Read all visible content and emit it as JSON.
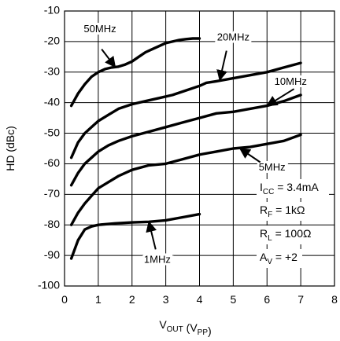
{
  "chart_data": {
    "type": "line",
    "title": "",
    "xlabel": {
      "main": "V",
      "sub": "OUT",
      "paren_main": " (V",
      "paren_sub": "PP",
      "close": ")"
    },
    "ylabel": "HD (dBc)",
    "xlim": [
      0,
      8
    ],
    "ylim": [
      -100,
      -10
    ],
    "xticks": [
      0,
      1,
      2,
      3,
      4,
      5,
      6,
      7,
      8
    ],
    "yticks": [
      -100,
      -90,
      -80,
      -70,
      -60,
      -50,
      -40,
      -30,
      -20,
      -10
    ],
    "xtick_labels": [
      "0",
      "1",
      "2",
      "3",
      "4",
      "5",
      "6",
      "7",
      "8"
    ],
    "ytick_labels": [
      "-100",
      "-90",
      "-80",
      "-70",
      "-60",
      "-50",
      "-40",
      "-30",
      "-20",
      "-10"
    ],
    "grid": true,
    "series_color": "#000000",
    "series": [
      {
        "name": "50MHz",
        "x": [
          0.2,
          0.4,
          0.6,
          0.8,
          1.0,
          1.2,
          1.4,
          1.6,
          1.8,
          2.0,
          2.2,
          2.4,
          2.6,
          2.8,
          3.0,
          3.2,
          3.4,
          3.6,
          3.8,
          4.0
        ],
        "y": [
          -41,
          -37,
          -34,
          -31.5,
          -30,
          -29,
          -28.5,
          -28.2,
          -27.5,
          -26.5,
          -25,
          -23.5,
          -22.5,
          -21.5,
          -20.5,
          -20,
          -19.5,
          -19.2,
          -19,
          -19
        ]
      },
      {
        "name": "20MHz",
        "x": [
          0.2,
          0.4,
          0.6,
          0.8,
          1.0,
          1.3,
          1.6,
          2.0,
          2.4,
          2.8,
          3.2,
          3.6,
          4.0,
          4.2,
          4.5,
          5.0,
          5.5,
          6.0,
          6.5,
          7.0
        ],
        "y": [
          -58,
          -53,
          -50,
          -48,
          -46,
          -44,
          -42,
          -40.5,
          -39.5,
          -38.5,
          -37.5,
          -36,
          -34.5,
          -33.5,
          -33,
          -32,
          -31,
          -30,
          -28.5,
          -27
        ]
      },
      {
        "name": "10MHz",
        "x": [
          0.2,
          0.4,
          0.6,
          0.8,
          1.0,
          1.3,
          1.6,
          2.0,
          2.5,
          3.0,
          3.5,
          4.0,
          4.5,
          5.0,
          5.5,
          6.0,
          6.5,
          7.0
        ],
        "y": [
          -67,
          -63,
          -60,
          -58,
          -56,
          -54,
          -52.5,
          -51,
          -49.5,
          -48,
          -46.5,
          -45,
          -43.5,
          -43,
          -42,
          -41,
          -39.5,
          -37.5
        ]
      },
      {
        "name": "5MHz",
        "x": [
          0.2,
          0.4,
          0.6,
          0.8,
          1.0,
          1.3,
          1.6,
          2.0,
          2.5,
          3.0,
          3.5,
          4.0,
          4.5,
          5.0,
          5.5,
          6.0,
          6.5,
          7.0
        ],
        "y": [
          -80,
          -76,
          -73,
          -70.5,
          -68,
          -66,
          -64,
          -62,
          -60.5,
          -60,
          -58.5,
          -57,
          -56,
          -55,
          -54.5,
          -53.5,
          -52.5,
          -50.5
        ]
      },
      {
        "name": "1MHz",
        "x": [
          0.2,
          0.4,
          0.6,
          0.8,
          1.0,
          1.5,
          2.0,
          2.5,
          3.0,
          3.5,
          4.0
        ],
        "y": [
          -91,
          -85,
          -81.5,
          -80.5,
          -80,
          -79.5,
          -79.2,
          -79,
          -78.5,
          -77.5,
          -76.5
        ]
      }
    ],
    "annotations": [
      {
        "series": "50MHz",
        "text": "50MHz",
        "label_x": 1.05,
        "label_y": -16,
        "arrow_from": [
          1.1,
          -22.5
        ],
        "arrow_to": [
          1.5,
          -28.3
        ]
      },
      {
        "series": "20MHz",
        "text": "20MHz",
        "label_x": 5.0,
        "label_y": -18.8,
        "arrow_from": [
          4.8,
          -23
        ],
        "arrow_to": [
          4.6,
          -32.6
        ]
      },
      {
        "series": "10MHz",
        "text": "10MHz",
        "label_x": 6.7,
        "label_y": -33.3,
        "arrow_from": [
          6.8,
          -35.5
        ],
        "arrow_to": [
          6.0,
          -41
        ]
      },
      {
        "series": "5MHz",
        "text": "5MHz",
        "label_x": 6.15,
        "label_y": -61.3,
        "arrow_from": [
          5.8,
          -59.5
        ],
        "arrow_to": [
          5.2,
          -55
        ]
      },
      {
        "series": "1MHz",
        "text": "1MHz",
        "label_x": 2.75,
        "label_y": -91.5,
        "arrow_from": [
          2.7,
          -88
        ],
        "arrow_to": [
          2.5,
          -79
        ]
      }
    ],
    "conditions": [
      {
        "main": "I",
        "sub": "CC",
        "rest": " = 3.4mA"
      },
      {
        "main": "R",
        "sub": "F",
        "rest": " = 1kΩ"
      },
      {
        "main": "R",
        "sub": "L",
        "rest": " = 100Ω"
      },
      {
        "main": "A",
        "sub": "V",
        "rest": " = +2"
      }
    ]
  }
}
